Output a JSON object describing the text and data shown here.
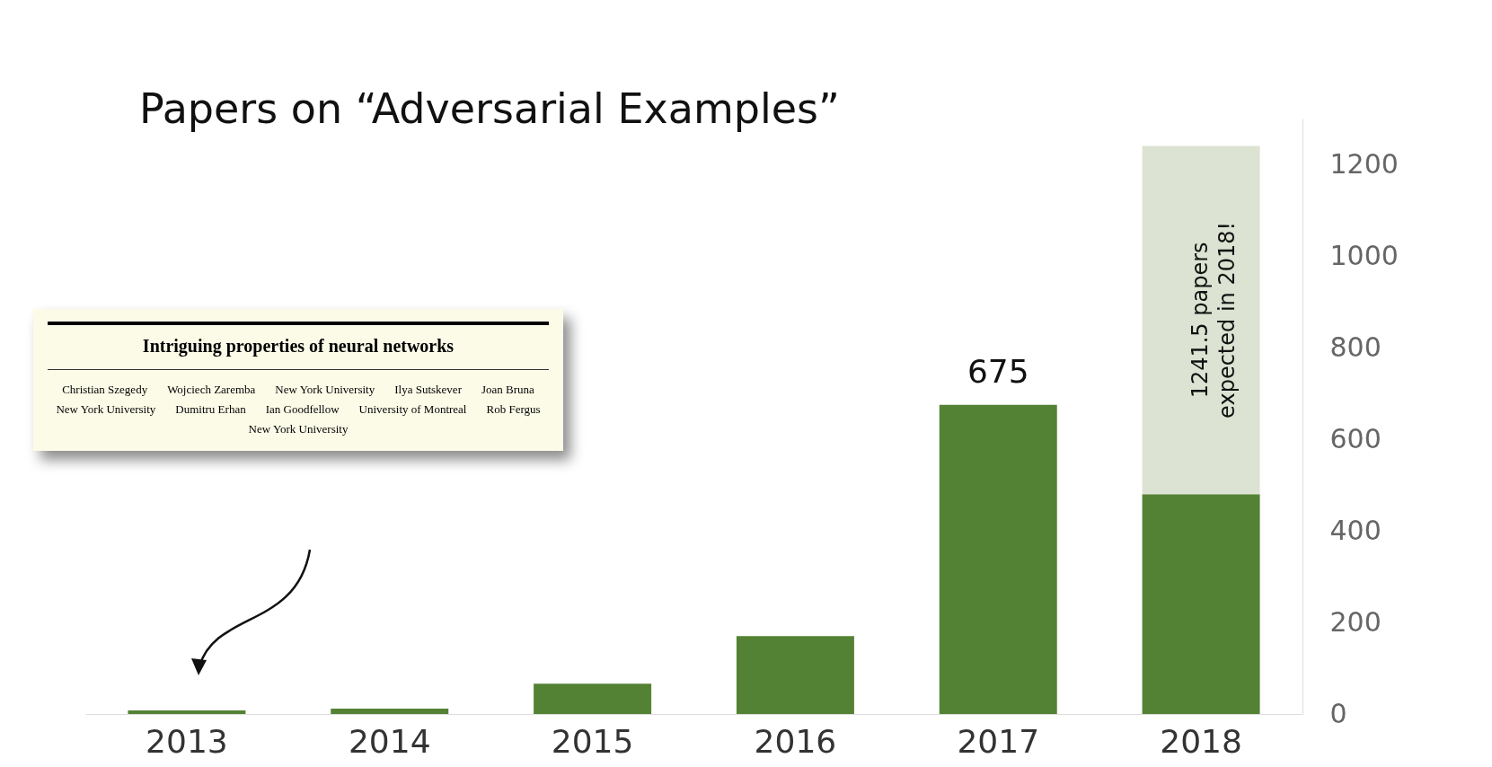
{
  "chart_data": {
    "type": "bar",
    "title": "Papers on “Adversarial Examples”",
    "categories": [
      "2013",
      "2014",
      "2015",
      "2016",
      "2017",
      "2018"
    ],
    "stacked": true,
    "series": [
      {
        "color": "#548235",
        "values": [
          8,
          12,
          66,
          170,
          675,
          480
        ],
        "value_labels": [
          null,
          null,
          null,
          null,
          "675",
          null
        ]
      },
      {
        "color": "#dde3d3",
        "values": [
          null,
          null,
          null,
          null,
          null,
          760
        ]
      }
    ],
    "ylim": [
      0,
      1300
    ],
    "yticks": [
      0,
      200,
      400,
      600,
      800,
      1000,
      1200
    ],
    "grid": false,
    "annotations": [
      "1241.5 papers expected in 2018!",
      "Intriguing properties of neural networks",
      "Christian Szegedy",
      "Wojciech Zaremba",
      "New York University",
      "Ilya Sutskever",
      "Joan Bruna",
      "New York University",
      "Dumitru Erhan",
      "Ian Goodfellow",
      "University of Montreal",
      "Rob Fergus",
      "New York University"
    ]
  }
}
